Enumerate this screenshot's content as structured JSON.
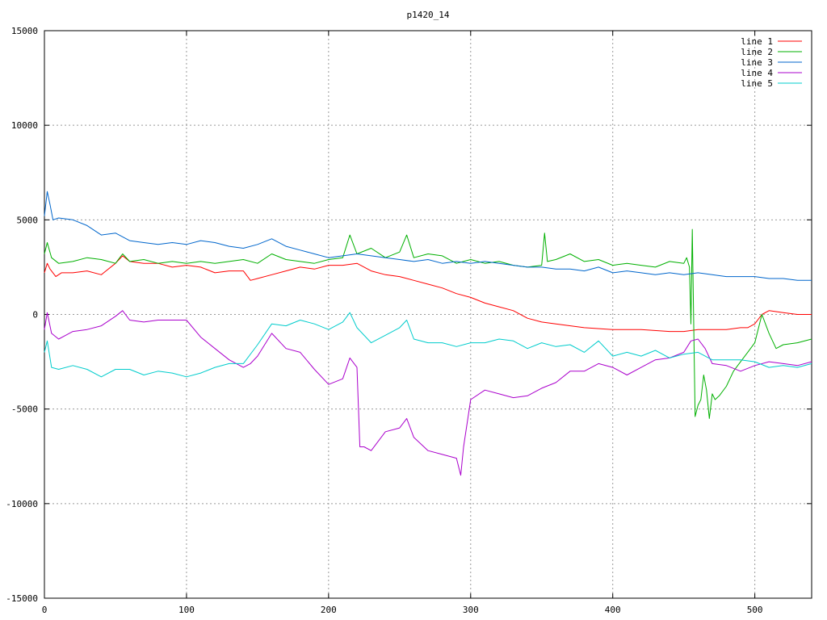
{
  "chart_data": {
    "type": "line",
    "title": "p1420_14",
    "xlabel": "",
    "ylabel": "",
    "xlim": [
      0,
      540
    ],
    "ylim": [
      -15000,
      15000
    ],
    "xticks": [
      0,
      100,
      200,
      300,
      400,
      500
    ],
    "yticks": [
      -15000,
      -10000,
      -5000,
      0,
      5000,
      10000,
      15000
    ],
    "grid": true,
    "legend_position": "top-right",
    "series": [
      {
        "name": "line 1",
        "color": "#ff0000",
        "x": [
          0,
          2,
          4,
          8,
          12,
          20,
          30,
          40,
          50,
          55,
          60,
          70,
          80,
          90,
          100,
          110,
          120,
          130,
          140,
          145,
          150,
          160,
          170,
          180,
          190,
          200,
          210,
          220,
          230,
          240,
          250,
          260,
          270,
          280,
          290,
          300,
          310,
          320,
          330,
          340,
          350,
          360,
          380,
          400,
          420,
          440,
          450,
          460,
          470,
          480,
          490,
          495,
          500,
          505,
          510,
          520,
          530,
          540
        ],
        "y": [
          2200,
          2700,
          2400,
          2000,
          2200,
          2200,
          2300,
          2100,
          2700,
          3100,
          2800,
          2700,
          2700,
          2500,
          2600,
          2500,
          2200,
          2300,
          2300,
          1800,
          1900,
          2100,
          2300,
          2500,
          2400,
          2600,
          2600,
          2700,
          2300,
          2100,
          2000,
          1800,
          1600,
          1400,
          1100,
          900,
          600,
          400,
          200,
          -200,
          -400,
          -500,
          -700,
          -800,
          -800,
          -900,
          -900,
          -800,
          -800,
          -800,
          -700,
          -700,
          -500,
          0,
          200,
          100,
          0,
          0
        ]
      },
      {
        "name": "line 2",
        "color": "#00b000",
        "x": [
          0,
          2,
          5,
          10,
          20,
          30,
          40,
          50,
          55,
          60,
          70,
          80,
          90,
          100,
          110,
          120,
          130,
          140,
          150,
          160,
          170,
          180,
          190,
          200,
          210,
          215,
          220,
          230,
          240,
          250,
          255,
          260,
          270,
          280,
          290,
          300,
          310,
          320,
          330,
          340,
          350,
          352,
          354,
          360,
          370,
          380,
          390,
          400,
          410,
          420,
          430,
          440,
          450,
          452,
          454,
          455,
          456,
          458,
          460,
          462,
          464,
          466,
          468,
          470,
          472,
          475,
          480,
          485,
          490,
          495,
          500,
          505,
          510,
          515,
          520,
          530,
          540
        ],
        "y": [
          3200,
          3800,
          3000,
          2700,
          2800,
          3000,
          2900,
          2700,
          3200,
          2800,
          2900,
          2700,
          2800,
          2700,
          2800,
          2700,
          2800,
          2900,
          2700,
          3200,
          2900,
          2800,
          2700,
          2900,
          3000,
          4200,
          3200,
          3500,
          3000,
          3300,
          4200,
          3000,
          3200,
          3100,
          2700,
          2900,
          2700,
          2800,
          2600,
          2500,
          2600,
          4300,
          2800,
          2900,
          3200,
          2800,
          2900,
          2600,
          2700,
          2600,
          2500,
          2800,
          2700,
          3000,
          2500,
          -500,
          4500,
          -5400,
          -4800,
          -4500,
          -3200,
          -4000,
          -5500,
          -4200,
          -4500,
          -4300,
          -3800,
          -3000,
          -2500,
          -2000,
          -1500,
          0,
          -1000,
          -1800,
          -1600,
          -1500,
          -1300
        ]
      },
      {
        "name": "line 3",
        "color": "#0066cc",
        "x": [
          0,
          2,
          4,
          6,
          10,
          20,
          30,
          40,
          50,
          60,
          70,
          80,
          90,
          100,
          110,
          120,
          130,
          140,
          150,
          160,
          170,
          180,
          190,
          200,
          210,
          220,
          230,
          240,
          250,
          260,
          270,
          280,
          290,
          300,
          310,
          320,
          330,
          340,
          350,
          360,
          370,
          380,
          390,
          400,
          410,
          420,
          430,
          440,
          450,
          460,
          470,
          480,
          490,
          500,
          510,
          520,
          530,
          540
        ],
        "y": [
          5200,
          6500,
          5800,
          5000,
          5100,
          5000,
          4700,
          4200,
          4300,
          3900,
          3800,
          3700,
          3800,
          3700,
          3900,
          3800,
          3600,
          3500,
          3700,
          4000,
          3600,
          3400,
          3200,
          3000,
          3100,
          3200,
          3100,
          3000,
          2900,
          2800,
          2900,
          2700,
          2800,
          2700,
          2800,
          2700,
          2600,
          2500,
          2500,
          2400,
          2400,
          2300,
          2500,
          2200,
          2300,
          2200,
          2100,
          2200,
          2100,
          2200,
          2100,
          2000,
          2000,
          2000,
          1900,
          1900,
          1800,
          1800
        ]
      },
      {
        "name": "line 4",
        "color": "#aa00cc",
        "x": [
          0,
          2,
          5,
          10,
          15,
          20,
          30,
          40,
          50,
          55,
          60,
          70,
          80,
          90,
          100,
          110,
          120,
          130,
          140,
          145,
          150,
          160,
          170,
          180,
          190,
          200,
          210,
          215,
          220,
          222,
          225,
          230,
          240,
          250,
          255,
          260,
          270,
          280,
          290,
          293,
          295,
          300,
          310,
          320,
          330,
          340,
          350,
          360,
          370,
          380,
          390,
          400,
          410,
          420,
          430,
          440,
          450,
          455,
          460,
          465,
          470,
          480,
          490,
          500,
          510,
          520,
          530,
          540
        ],
        "y": [
          -800,
          100,
          -1000,
          -1300,
          -1100,
          -900,
          -800,
          -600,
          -100,
          200,
          -300,
          -400,
          -300,
          -300,
          -300,
          -1200,
          -1800,
          -2400,
          -2800,
          -2600,
          -2200,
          -1000,
          -1800,
          -2000,
          -2900,
          -3700,
          -3400,
          -2300,
          -2800,
          -7000,
          -7000,
          -7200,
          -6200,
          -6000,
          -5500,
          -6500,
          -7200,
          -7400,
          -7600,
          -8500,
          -7000,
          -4500,
          -4000,
          -4200,
          -4400,
          -4300,
          -3900,
          -3600,
          -3000,
          -3000,
          -2600,
          -2800,
          -3200,
          -2800,
          -2400,
          -2300,
          -2000,
          -1400,
          -1300,
          -1800,
          -2600,
          -2700,
          -3000,
          -2700,
          -2500,
          -2600,
          -2700,
          -2500
        ]
      },
      {
        "name": "line 5",
        "color": "#00cccc",
        "x": [
          0,
          2,
          5,
          10,
          20,
          30,
          40,
          50,
          60,
          70,
          80,
          90,
          100,
          110,
          120,
          130,
          140,
          150,
          160,
          170,
          180,
          190,
          200,
          210,
          215,
          220,
          230,
          240,
          250,
          255,
          260,
          270,
          280,
          290,
          300,
          310,
          320,
          330,
          340,
          350,
          360,
          370,
          380,
          390,
          400,
          410,
          420,
          430,
          440,
          450,
          460,
          470,
          480,
          490,
          500,
          510,
          520,
          530,
          540
        ],
        "y": [
          -2000,
          -1400,
          -2800,
          -2900,
          -2700,
          -2900,
          -3300,
          -2900,
          -2900,
          -3200,
          -3000,
          -3100,
          -3300,
          -3100,
          -2800,
          -2600,
          -2600,
          -1600,
          -500,
          -600,
          -300,
          -500,
          -800,
          -400,
          100,
          -700,
          -1500,
          -1100,
          -700,
          -300,
          -1300,
          -1500,
          -1500,
          -1700,
          -1500,
          -1500,
          -1300,
          -1400,
          -1800,
          -1500,
          -1700,
          -1600,
          -2000,
          -1400,
          -2200,
          -2000,
          -2200,
          -1900,
          -2300,
          -2100,
          -2000,
          -2400,
          -2400,
          -2400,
          -2500,
          -2800,
          -2700,
          -2800,
          -2600
        ]
      }
    ]
  }
}
